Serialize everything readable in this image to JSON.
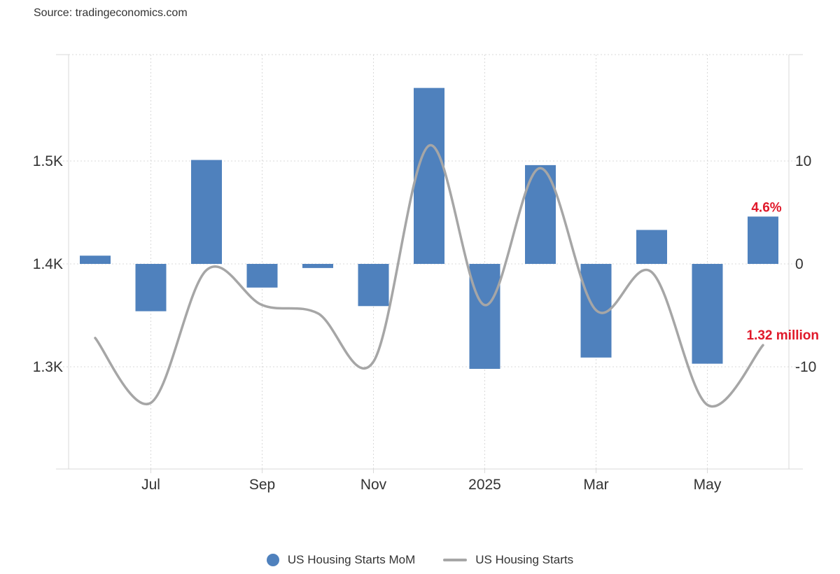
{
  "source_text": "Source: tradingeconomics.com",
  "colors": {
    "bar": "#4f81bd",
    "line": "#a6a6a6",
    "annotation": "#e0192a",
    "grid": "#d9d9d9",
    "axis_text": "#333333"
  },
  "chart_data": {
    "type": "bar",
    "categories": [
      "Jun 2024",
      "Jul 2024",
      "Aug 2024",
      "Sep 2024",
      "Oct 2024",
      "Nov 2024",
      "Dec 2024",
      "Jan 2025",
      "Feb 2025",
      "Mar 2025",
      "Apr 2025",
      "May 2025",
      "Jun 2025"
    ],
    "x_tick_labels": [
      {
        "label": "Jul",
        "category": "Jul 2024"
      },
      {
        "label": "Sep",
        "category": "Sep 2024"
      },
      {
        "label": "Nov",
        "category": "Nov 2024"
      },
      {
        "label": "2025",
        "category": "Jan 2025"
      },
      {
        "label": "Mar",
        "category": "Mar 2025"
      },
      {
        "label": "May",
        "category": "May 2025"
      }
    ],
    "series": [
      {
        "name": "US Housing Starts MoM",
        "type": "bar",
        "axis": "right",
        "values": [
          0.8,
          -4.6,
          10.1,
          -2.3,
          -0.4,
          -4.1,
          17.1,
          -10.2,
          9.6,
          -9.1,
          3.3,
          -9.7,
          4.6
        ]
      },
      {
        "name": "US Housing Starts",
        "type": "line",
        "axis": "left",
        "values": [
          1.328,
          1.265,
          1.394,
          1.36,
          1.352,
          1.305,
          1.515,
          1.36,
          1.493,
          1.355,
          1.392,
          1.263,
          1.321
        ]
      }
    ],
    "left_axis": {
      "ticks": [
        1.3,
        1.4,
        1.5
      ],
      "tick_labels": [
        "1.3K",
        "1.4K",
        "1.5K"
      ]
    },
    "right_axis": {
      "ticks": [
        -10,
        0,
        10
      ],
      "tick_labels": [
        "-10",
        "0",
        "10"
      ]
    },
    "annotations": [
      {
        "text": "4.6%",
        "series": "US Housing Starts MoM",
        "category": "Jun 2025"
      },
      {
        "text": "1.32 million",
        "series": "US Housing Starts",
        "category": "Jun 2025"
      }
    ],
    "grid": true,
    "legend_position": "bottom"
  }
}
